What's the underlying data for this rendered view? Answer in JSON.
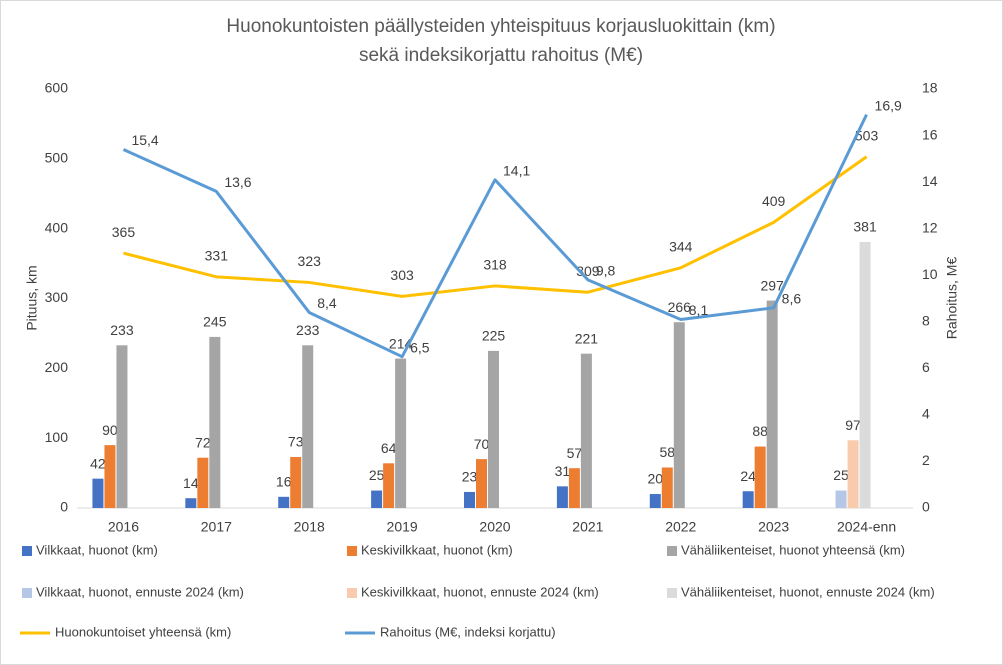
{
  "chart_data": {
    "type": "bar",
    "title": [
      "Huonokuntoisten päällysteiden yhteispituus korjausluokittain (km)",
      "sekä indeksikorjattu rahoitus (M€)"
    ],
    "y_label": "Pituus, km",
    "y2_label": "Rahoitus, M€",
    "categories": [
      "2016",
      "2017",
      "2018",
      "2019",
      "2020",
      "2021",
      "2022",
      "2023",
      "2024-enn"
    ],
    "ylim": [
      0,
      600
    ],
    "yticks": [
      0,
      100,
      200,
      300,
      400,
      500,
      600
    ],
    "y2lim": [
      0,
      18
    ],
    "y2ticks": [
      0,
      2,
      4,
      6,
      8,
      10,
      12,
      14,
      16,
      18
    ],
    "grid": false,
    "series": [
      {
        "name": "Vilkkaat, huonot (km)",
        "type": "bar",
        "color": "#4472c4",
        "values": [
          42,
          14,
          16,
          25,
          23,
          31,
          20,
          24,
          null
        ]
      },
      {
        "name": "Keskivilkkaat, huonot (km)",
        "type": "bar",
        "color": "#ed7d31",
        "values": [
          90,
          72,
          73,
          64,
          70,
          57,
          58,
          88,
          null
        ]
      },
      {
        "name": "Vähäliikenteiset, huonot yhteensä (km)",
        "type": "bar",
        "color": "#a5a5a5",
        "values": [
          233,
          245,
          233,
          214,
          225,
          221,
          266,
          297,
          null
        ]
      },
      {
        "name": "Vilkkaat, huonot, ennuste 2024 (km)",
        "type": "bar",
        "color": "#b4c7e7",
        "values": [
          null,
          null,
          null,
          null,
          null,
          null,
          null,
          null,
          25
        ]
      },
      {
        "name": "Keskivilkkaat, huonot, ennuste 2024 (km)",
        "type": "bar",
        "color": "#f8cbad",
        "values": [
          null,
          null,
          null,
          null,
          null,
          null,
          null,
          null,
          97
        ]
      },
      {
        "name": "Vähäliikenteiset, huonot, ennuste 2024 (km)",
        "type": "bar",
        "color": "#dbdbdb",
        "values": [
          null,
          null,
          null,
          null,
          null,
          null,
          null,
          null,
          381
        ]
      },
      {
        "name": "Huonokuntoiset yhteensä (km)",
        "type": "line",
        "color": "#ffc000",
        "values": [
          365,
          331,
          323,
          303,
          318,
          309,
          344,
          409,
          503
        ]
      },
      {
        "name": "Rahoitus (M€, indeksi korjattu)",
        "type": "line",
        "axis": "y2",
        "color": "#5b9bd5",
        "values": [
          15.4,
          13.6,
          8.4,
          6.5,
          14.1,
          9.8,
          8.1,
          8.6,
          16.9
        ],
        "value_labels": [
          "15,4",
          "13,6",
          "8,4",
          "6,5",
          "14,1",
          "9,8",
          "8,1",
          "8,6",
          "16,9"
        ]
      }
    ]
  }
}
